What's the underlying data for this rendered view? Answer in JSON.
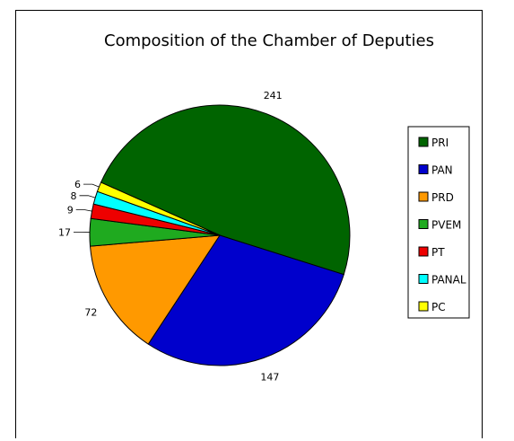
{
  "chart_data": {
    "type": "pie",
    "title": "Composition of the Chamber of Deputies",
    "categories": [
      "PRI",
      "PAN",
      "PRD",
      "PVEM",
      "PT",
      "PANAL",
      "PC"
    ],
    "values": [
      241,
      147,
      72,
      17,
      9,
      8,
      6
    ],
    "colors": [
      "#006400",
      "#0000cc",
      "#ff9900",
      "#1faa1f",
      "#ee0000",
      "#00ffff",
      "#ffff00"
    ],
    "legend_position": "right",
    "slice_labels": true
  }
}
